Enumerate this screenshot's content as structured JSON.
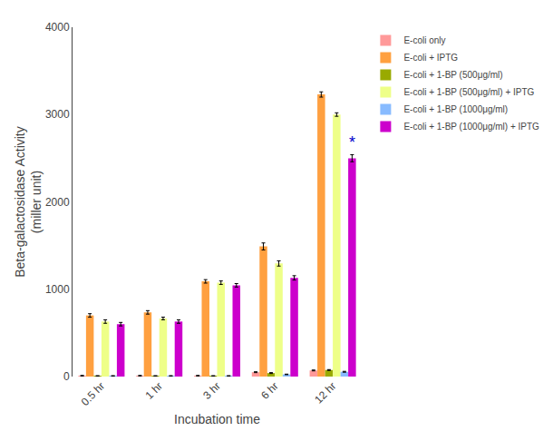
{
  "chart_data": {
    "type": "bar",
    "categories": [
      "0.5 hr",
      "1 hr",
      "3 hr",
      "6 hr",
      "12 hr"
    ],
    "series": [
      {
        "name": "E-coli only",
        "color": "#FF9999",
        "values": [
          10,
          10,
          10,
          50,
          70
        ],
        "errors": [
          3,
          3,
          3,
          5,
          5
        ]
      },
      {
        "name": "E-coli + IPTG",
        "color": "#FFA040",
        "values": [
          700,
          735,
          1090,
          1490,
          3230
        ],
        "errors": [
          20,
          20,
          20,
          40,
          30
        ]
      },
      {
        "name": "E-coli + 1-BP (500μg/ml)",
        "color": "#99AA00",
        "values": [
          8,
          8,
          8,
          40,
          75
        ],
        "errors": [
          2,
          2,
          2,
          5,
          5
        ]
      },
      {
        "name": "E-coli + 1-BP (500μg/ml) + IPTG",
        "color": "#EEFF88",
        "values": [
          630,
          665,
          1075,
          1295,
          3000
        ],
        "errors": [
          20,
          15,
          20,
          30,
          20
        ]
      },
      {
        "name": "E-coli + 1-BP (1000μg/ml)",
        "color": "#88BBFF",
        "values": [
          8,
          8,
          8,
          25,
          55
        ],
        "errors": [
          2,
          2,
          2,
          3,
          5
        ]
      },
      {
        "name": "E-coli + 1-BP (1000μg/ml) + IPTG",
        "color": "#CC00CC",
        "values": [
          600,
          630,
          1045,
          1130,
          2500
        ],
        "errors": [
          20,
          20,
          20,
          25,
          40
        ]
      }
    ],
    "ylabel": "Beta-galactosidase Activity\n(miller unit)",
    "xlabel": "Incubation time",
    "ylim": [
      0,
      4000
    ],
    "yticks": [
      0,
      1000,
      2000,
      3000,
      4000
    ],
    "grid": false,
    "legend": "right",
    "annotations": [
      {
        "text": "*",
        "series": "E-coli + 1-BP (1000μg/ml) + IPTG",
        "category": "12 hr",
        "color": "#0000CC"
      }
    ]
  }
}
